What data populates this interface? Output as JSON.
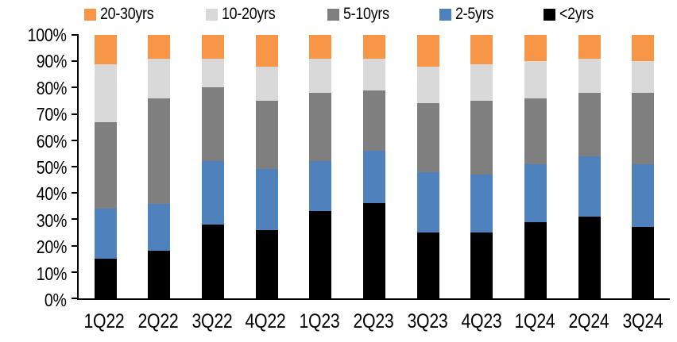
{
  "chart_data": {
    "type": "bar",
    "subtype": "stacked-100-percent",
    "title": "",
    "xlabel": "",
    "ylabel": "",
    "grid": false,
    "background": "#FFFFFF",
    "axis_color": "#000000",
    "categories": [
      "1Q22",
      "2Q22",
      "3Q22",
      "4Q22",
      "1Q23",
      "2Q23",
      "3Q23",
      "4Q23",
      "1Q24",
      "2Q24",
      "3Q24"
    ],
    "series": [
      {
        "name": "<2yrs",
        "color": "#000000",
        "values": [
          15,
          18,
          28,
          26,
          33,
          36,
          25,
          25,
          29,
          31,
          27
        ]
      },
      {
        "name": "2-5yrs",
        "color": "#4F81BD",
        "values": [
          19,
          18,
          24,
          23,
          19,
          20,
          23,
          22,
          22,
          23,
          24
        ]
      },
      {
        "name": "5-10yrs",
        "color": "#7F7F7F",
        "values": [
          33,
          40,
          28,
          26,
          26,
          23,
          26,
          28,
          25,
          24,
          27
        ]
      },
      {
        "name": "10-20yrs",
        "color": "#D9D9D9",
        "values": [
          22,
          15,
          11,
          13,
          13,
          12,
          14,
          14,
          14,
          13,
          12
        ]
      },
      {
        "name": "20-30yrs",
        "color": "#F79646",
        "values": [
          11,
          9,
          9,
          12,
          9,
          9,
          12,
          11,
          10,
          9,
          10
        ]
      }
    ],
    "stack_order": "bottom-to-top",
    "legend": {
      "position": "top",
      "order": [
        "20-30yrs",
        "10-20yrs",
        "5-10yrs",
        "2-5yrs",
        "<2yrs"
      ]
    },
    "y_axis": {
      "min": 0,
      "max": 100,
      "step": 10,
      "tick_labels": [
        "0%",
        "10%",
        "20%",
        "30%",
        "40%",
        "50%",
        "60%",
        "70%",
        "80%",
        "90%",
        "100%"
      ]
    }
  }
}
